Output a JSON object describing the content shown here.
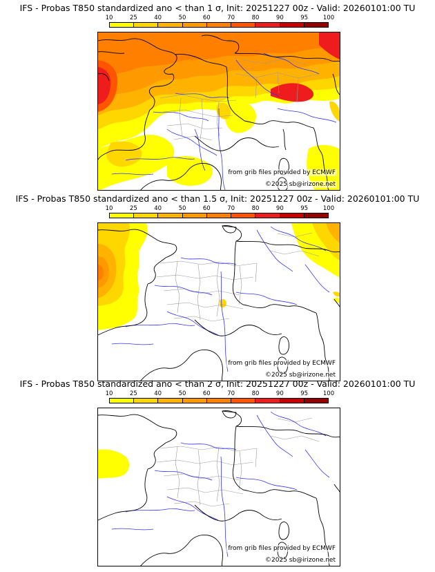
{
  "colorbar": {
    "labels": [
      "10",
      "25",
      "40",
      "50",
      "60",
      "70",
      "80",
      "90",
      "95",
      "100"
    ],
    "colors": [
      "#ffff00",
      "#ffd700",
      "#ffb300",
      "#ff9900",
      "#ff7f00",
      "#ff5500",
      "#ee1c1c",
      "#c80000",
      "#960000",
      "#5a0000"
    ]
  },
  "map_colors": {
    "borders": "#000000",
    "rivers": "#3333ff",
    "regions": "#9a9a9a",
    "land": "#ffffff"
  },
  "credits": {
    "source": "from grib files provided by ECMWF",
    "copyright": "©2025 sb@irizone.net"
  },
  "panels": [
    {
      "title": "IFS - Probas T850  standardized ano < than 1 σ, Init: 20251227 00z - Valid: 20260101:00 TU"
    },
    {
      "title": "IFS - Probas T850  standardized ano < than 1.5 σ, Init: 20251227 00z - Valid: 20260101:00 TU"
    },
    {
      "title": "IFS - Probas T850  standardized ano < than 2 σ, Init: 20251227 00z - Valid: 20260101:00 TU"
    }
  ]
}
